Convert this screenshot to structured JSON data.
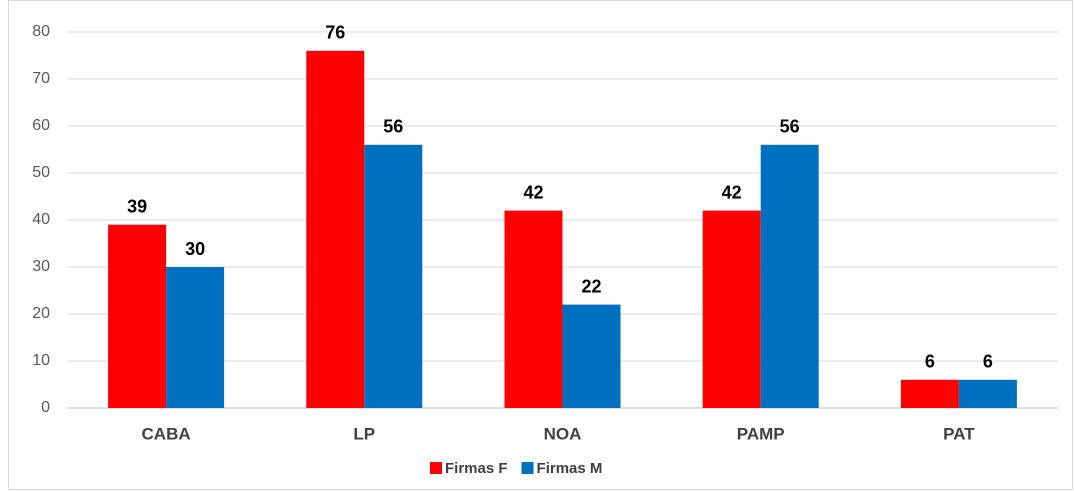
{
  "chart_data": {
    "type": "bar",
    "categories": [
      "CABA",
      "LP",
      "NOA",
      "PAMP",
      "PAT"
    ],
    "series": [
      {
        "name": "Firmas F",
        "color": "#ff0000",
        "values": [
          39,
          76,
          42,
          42,
          6
        ]
      },
      {
        "name": "Firmas M",
        "color": "#0070c0",
        "values": [
          30,
          56,
          22,
          56,
          6
        ]
      }
    ],
    "ylim": [
      0,
      80
    ],
    "yticks": [
      0,
      10,
      20,
      30,
      40,
      50,
      60,
      70,
      80
    ],
    "grid": true,
    "legend": "bottom",
    "data_labels": true
  }
}
